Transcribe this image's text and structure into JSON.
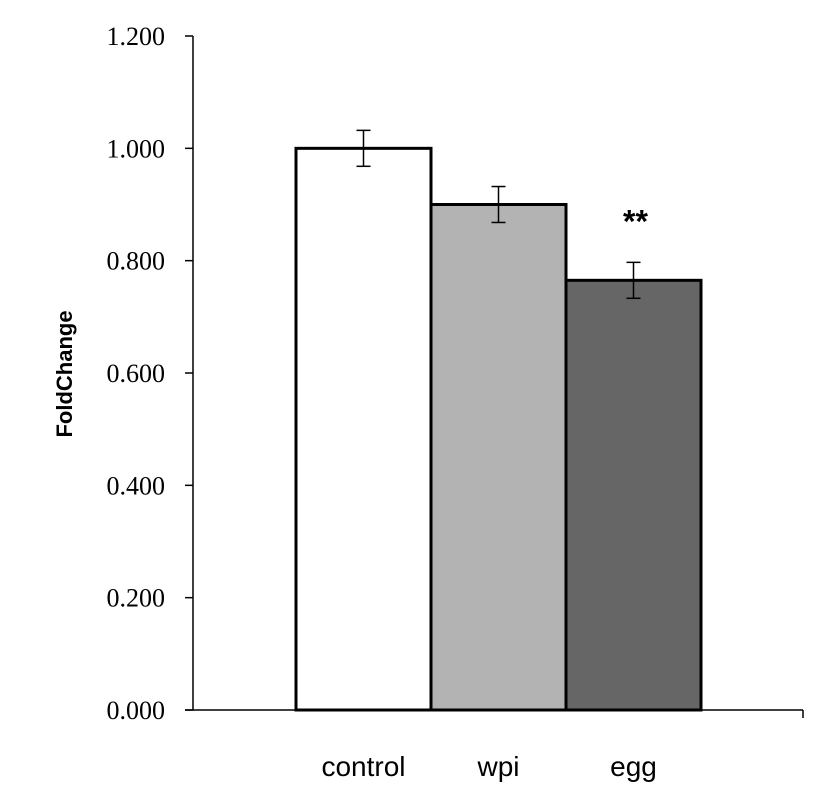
{
  "chart_data": {
    "type": "bar",
    "title": "",
    "xlabel": "",
    "ylabel": "FoldChange",
    "ylim": [
      0,
      1.2
    ],
    "y_ticks": [
      {
        "value": 0.0,
        "label": "0.000"
      },
      {
        "value": 0.2,
        "label": "0.200"
      },
      {
        "value": 0.4,
        "label": "0.400"
      },
      {
        "value": 0.6,
        "label": "0.600"
      },
      {
        "value": 0.8,
        "label": "0.800"
      },
      {
        "value": 1.0,
        "label": "1.000"
      },
      {
        "value": 1.2,
        "label": "1.200"
      }
    ],
    "categories": [
      "control",
      "wpi",
      "egg"
    ],
    "values": [
      1.0,
      0.9,
      0.765
    ],
    "errors": [
      0.032,
      0.032,
      0.032
    ],
    "colors": [
      "#ffffff",
      "#b3b3b3",
      "#666666"
    ],
    "annotations": [
      {
        "category": "egg",
        "text": "**"
      }
    ],
    "grid": false,
    "legend": "none"
  }
}
